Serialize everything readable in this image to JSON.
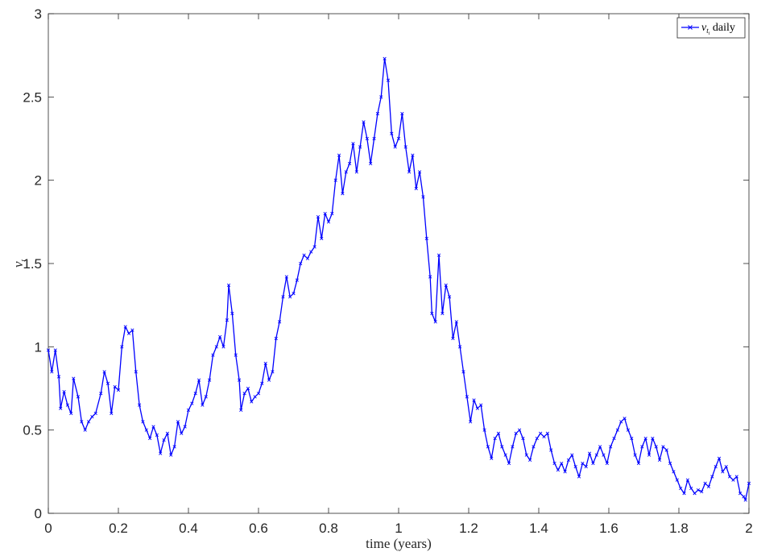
{
  "chart_data": {
    "type": "line",
    "xlabel": "time (years)",
    "ylabel_symbol": "ν",
    "ylabel_subscript": "t",
    "xlim": [
      0,
      2
    ],
    "ylim": [
      0,
      3
    ],
    "xticks": [
      "0",
      "0.2",
      "0.4",
      "0.6",
      "0.8",
      "1",
      "1.2",
      "1.4",
      "1.6",
      "1.8",
      "2"
    ],
    "yticks": [
      "0",
      "0.5",
      "1",
      "1.5",
      "2",
      "2.5",
      "3"
    ],
    "xtick_values": [
      0,
      0.2,
      0.4,
      0.6,
      0.8,
      1.0,
      1.2,
      1.4,
      1.6,
      1.8,
      2.0
    ],
    "ytick_values": [
      0,
      0.5,
      1.0,
      1.5,
      2.0,
      2.5,
      3.0
    ],
    "grid": false,
    "legend_position": "top-right",
    "series": [
      {
        "name_symbol": "ν",
        "name_subscript": "t",
        "name_sub_subscript": "i",
        "name_suffix": " daily",
        "color": "#0000ff",
        "marker": "x",
        "points": [
          [
            0.0,
            0.98
          ],
          [
            0.01,
            0.85
          ],
          [
            0.02,
            0.98
          ],
          [
            0.03,
            0.82
          ],
          [
            0.035,
            0.63
          ],
          [
            0.045,
            0.73
          ],
          [
            0.055,
            0.65
          ],
          [
            0.065,
            0.6
          ],
          [
            0.072,
            0.81
          ],
          [
            0.085,
            0.7
          ],
          [
            0.095,
            0.55
          ],
          [
            0.105,
            0.5
          ],
          [
            0.115,
            0.55
          ],
          [
            0.125,
            0.58
          ],
          [
            0.135,
            0.6
          ],
          [
            0.15,
            0.72
          ],
          [
            0.16,
            0.85
          ],
          [
            0.17,
            0.78
          ],
          [
            0.18,
            0.6
          ],
          [
            0.19,
            0.76
          ],
          [
            0.2,
            0.74
          ],
          [
            0.21,
            1.0
          ],
          [
            0.22,
            1.12
          ],
          [
            0.23,
            1.08
          ],
          [
            0.24,
            1.1
          ],
          [
            0.25,
            0.85
          ],
          [
            0.26,
            0.65
          ],
          [
            0.27,
            0.55
          ],
          [
            0.28,
            0.5
          ],
          [
            0.29,
            0.45
          ],
          [
            0.3,
            0.52
          ],
          [
            0.31,
            0.47
          ],
          [
            0.32,
            0.36
          ],
          [
            0.33,
            0.44
          ],
          [
            0.34,
            0.48
          ],
          [
            0.35,
            0.35
          ],
          [
            0.36,
            0.4
          ],
          [
            0.37,
            0.55
          ],
          [
            0.38,
            0.48
          ],
          [
            0.39,
            0.52
          ],
          [
            0.4,
            0.62
          ],
          [
            0.41,
            0.66
          ],
          [
            0.42,
            0.72
          ],
          [
            0.43,
            0.8
          ],
          [
            0.44,
            0.65
          ],
          [
            0.45,
            0.7
          ],
          [
            0.46,
            0.8
          ],
          [
            0.47,
            0.95
          ],
          [
            0.48,
            1.0
          ],
          [
            0.49,
            1.06
          ],
          [
            0.5,
            1.0
          ],
          [
            0.51,
            1.16
          ],
          [
            0.515,
            1.37
          ],
          [
            0.525,
            1.2
          ],
          [
            0.535,
            0.95
          ],
          [
            0.545,
            0.8
          ],
          [
            0.55,
            0.62
          ],
          [
            0.56,
            0.72
          ],
          [
            0.57,
            0.75
          ],
          [
            0.58,
            0.67
          ],
          [
            0.59,
            0.7
          ],
          [
            0.6,
            0.72
          ],
          [
            0.61,
            0.78
          ],
          [
            0.62,
            0.9
          ],
          [
            0.63,
            0.8
          ],
          [
            0.64,
            0.85
          ],
          [
            0.65,
            1.05
          ],
          [
            0.66,
            1.15
          ],
          [
            0.67,
            1.3
          ],
          [
            0.68,
            1.42
          ],
          [
            0.69,
            1.3
          ],
          [
            0.7,
            1.32
          ],
          [
            0.71,
            1.4
          ],
          [
            0.72,
            1.5
          ],
          [
            0.73,
            1.55
          ],
          [
            0.74,
            1.53
          ],
          [
            0.75,
            1.57
          ],
          [
            0.76,
            1.6
          ],
          [
            0.77,
            1.78
          ],
          [
            0.78,
            1.65
          ],
          [
            0.79,
            1.8
          ],
          [
            0.8,
            1.75
          ],
          [
            0.81,
            1.8
          ],
          [
            0.82,
            2.0
          ],
          [
            0.83,
            2.15
          ],
          [
            0.84,
            1.92
          ],
          [
            0.85,
            2.05
          ],
          [
            0.86,
            2.1
          ],
          [
            0.87,
            2.22
          ],
          [
            0.88,
            2.05
          ],
          [
            0.89,
            2.2
          ],
          [
            0.9,
            2.35
          ],
          [
            0.91,
            2.25
          ],
          [
            0.92,
            2.1
          ],
          [
            0.93,
            2.25
          ],
          [
            0.94,
            2.4
          ],
          [
            0.95,
            2.5
          ],
          [
            0.96,
            2.73
          ],
          [
            0.97,
            2.6
          ],
          [
            0.98,
            2.28
          ],
          [
            0.99,
            2.2
          ],
          [
            1.0,
            2.25
          ],
          [
            1.01,
            2.4
          ],
          [
            1.02,
            2.2
          ],
          [
            1.03,
            2.05
          ],
          [
            1.04,
            2.15
          ],
          [
            1.05,
            1.95
          ],
          [
            1.06,
            2.05
          ],
          [
            1.07,
            1.9
          ],
          [
            1.08,
            1.65
          ],
          [
            1.09,
            1.42
          ],
          [
            1.095,
            1.2
          ],
          [
            1.105,
            1.15
          ],
          [
            1.115,
            1.55
          ],
          [
            1.125,
            1.2
          ],
          [
            1.135,
            1.37
          ],
          [
            1.145,
            1.3
          ],
          [
            1.155,
            1.05
          ],
          [
            1.165,
            1.15
          ],
          [
            1.175,
            1.0
          ],
          [
            1.185,
            0.85
          ],
          [
            1.195,
            0.7
          ],
          [
            1.205,
            0.55
          ],
          [
            1.215,
            0.68
          ],
          [
            1.225,
            0.63
          ],
          [
            1.235,
            0.65
          ],
          [
            1.245,
            0.5
          ],
          [
            1.255,
            0.4
          ],
          [
            1.265,
            0.33
          ],
          [
            1.275,
            0.45
          ],
          [
            1.285,
            0.48
          ],
          [
            1.295,
            0.4
          ],
          [
            1.305,
            0.35
          ],
          [
            1.315,
            0.3
          ],
          [
            1.325,
            0.4
          ],
          [
            1.335,
            0.48
          ],
          [
            1.345,
            0.5
          ],
          [
            1.355,
            0.45
          ],
          [
            1.365,
            0.35
          ],
          [
            1.375,
            0.32
          ],
          [
            1.385,
            0.4
          ],
          [
            1.395,
            0.45
          ],
          [
            1.405,
            0.48
          ],
          [
            1.415,
            0.46
          ],
          [
            1.425,
            0.48
          ],
          [
            1.435,
            0.38
          ],
          [
            1.445,
            0.3
          ],
          [
            1.455,
            0.26
          ],
          [
            1.465,
            0.3
          ],
          [
            1.475,
            0.25
          ],
          [
            1.485,
            0.32
          ],
          [
            1.495,
            0.35
          ],
          [
            1.505,
            0.28
          ],
          [
            1.515,
            0.22
          ],
          [
            1.525,
            0.3
          ],
          [
            1.535,
            0.28
          ],
          [
            1.545,
            0.36
          ],
          [
            1.555,
            0.3
          ],
          [
            1.565,
            0.35
          ],
          [
            1.575,
            0.4
          ],
          [
            1.585,
            0.35
          ],
          [
            1.595,
            0.3
          ],
          [
            1.605,
            0.4
          ],
          [
            1.615,
            0.45
          ],
          [
            1.625,
            0.5
          ],
          [
            1.635,
            0.55
          ],
          [
            1.645,
            0.57
          ],
          [
            1.655,
            0.5
          ],
          [
            1.665,
            0.45
          ],
          [
            1.675,
            0.35
          ],
          [
            1.685,
            0.3
          ],
          [
            1.695,
            0.4
          ],
          [
            1.705,
            0.45
          ],
          [
            1.715,
            0.35
          ],
          [
            1.725,
            0.45
          ],
          [
            1.735,
            0.4
          ],
          [
            1.745,
            0.32
          ],
          [
            1.755,
            0.4
          ],
          [
            1.765,
            0.38
          ],
          [
            1.775,
            0.3
          ],
          [
            1.785,
            0.25
          ],
          [
            1.795,
            0.2
          ],
          [
            1.805,
            0.15
          ],
          [
            1.815,
            0.12
          ],
          [
            1.825,
            0.2
          ],
          [
            1.835,
            0.15
          ],
          [
            1.845,
            0.12
          ],
          [
            1.855,
            0.14
          ],
          [
            1.865,
            0.13
          ],
          [
            1.875,
            0.18
          ],
          [
            1.885,
            0.16
          ],
          [
            1.895,
            0.22
          ],
          [
            1.905,
            0.28
          ],
          [
            1.915,
            0.33
          ],
          [
            1.925,
            0.25
          ],
          [
            1.935,
            0.28
          ],
          [
            1.945,
            0.22
          ],
          [
            1.955,
            0.2
          ],
          [
            1.965,
            0.22
          ],
          [
            1.975,
            0.12
          ],
          [
            1.985,
            0.1
          ],
          [
            1.99,
            0.08
          ],
          [
            2.0,
            0.18
          ]
        ]
      }
    ]
  }
}
